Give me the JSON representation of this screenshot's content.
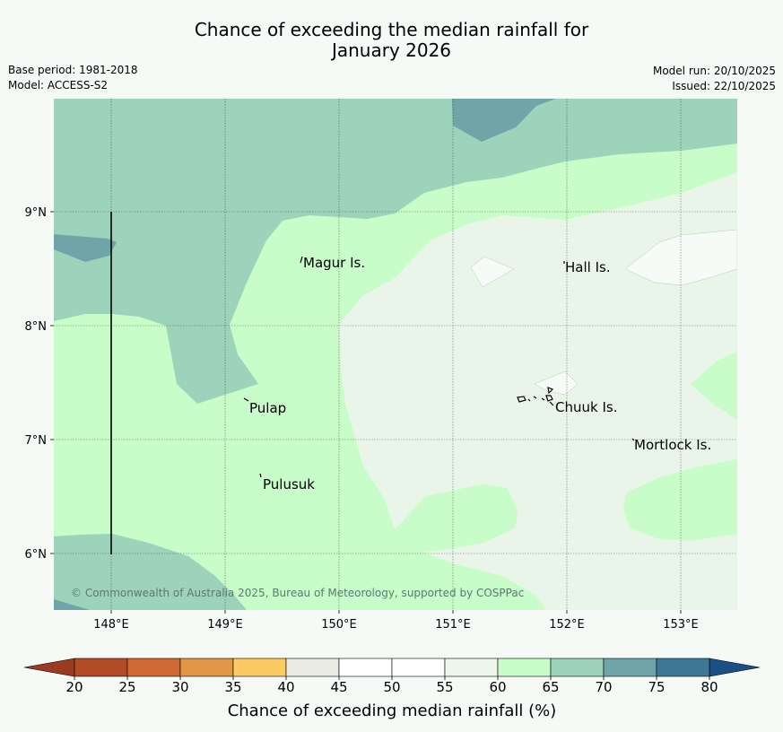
{
  "title": {
    "line1": "Chance of exceeding the median rainfall for",
    "line2": "January 2026"
  },
  "meta": {
    "base_period": "Base period: 1981-2018",
    "model": "Model: ACCESS-S2",
    "model_run": "Model run: 20/10/2025",
    "issued": "Issued: 22/10/2025"
  },
  "map": {
    "lon_ticks": [
      "148°E",
      "149°E",
      "150°E",
      "151°E",
      "152°E",
      "153°E"
    ],
    "lat_ticks": [
      "9°N",
      "8°N",
      "7°N",
      "6°N"
    ],
    "places": [
      {
        "name": "Magur Is."
      },
      {
        "name": "Hall Is."
      },
      {
        "name": "Pulap"
      },
      {
        "name": "Chuuk Is."
      },
      {
        "name": "Mortlock Is."
      },
      {
        "name": "Pulusuk"
      }
    ],
    "copyright": "© Commonwealth of Australia 2025, Bureau of Meteorology, supported by COSPPac"
  },
  "colorbar": {
    "title": "Chance of exceeding median rainfall (%)",
    "ticks": [
      "20",
      "25",
      "30",
      "35",
      "40",
      "45",
      "50",
      "55",
      "60",
      "65",
      "70",
      "75",
      "80"
    ],
    "colors": [
      "#b34b27",
      "#cf6832",
      "#e29746",
      "#fcc962",
      "#ebebe6",
      "#ffffff",
      "#ffffff",
      "#edf5ec",
      "#c8fcc8",
      "#9dd2bb",
      "#6fa5a8",
      "#3e7896"
    ],
    "under_color": "#9b3c22",
    "over_color": "#1c4f83"
  }
}
